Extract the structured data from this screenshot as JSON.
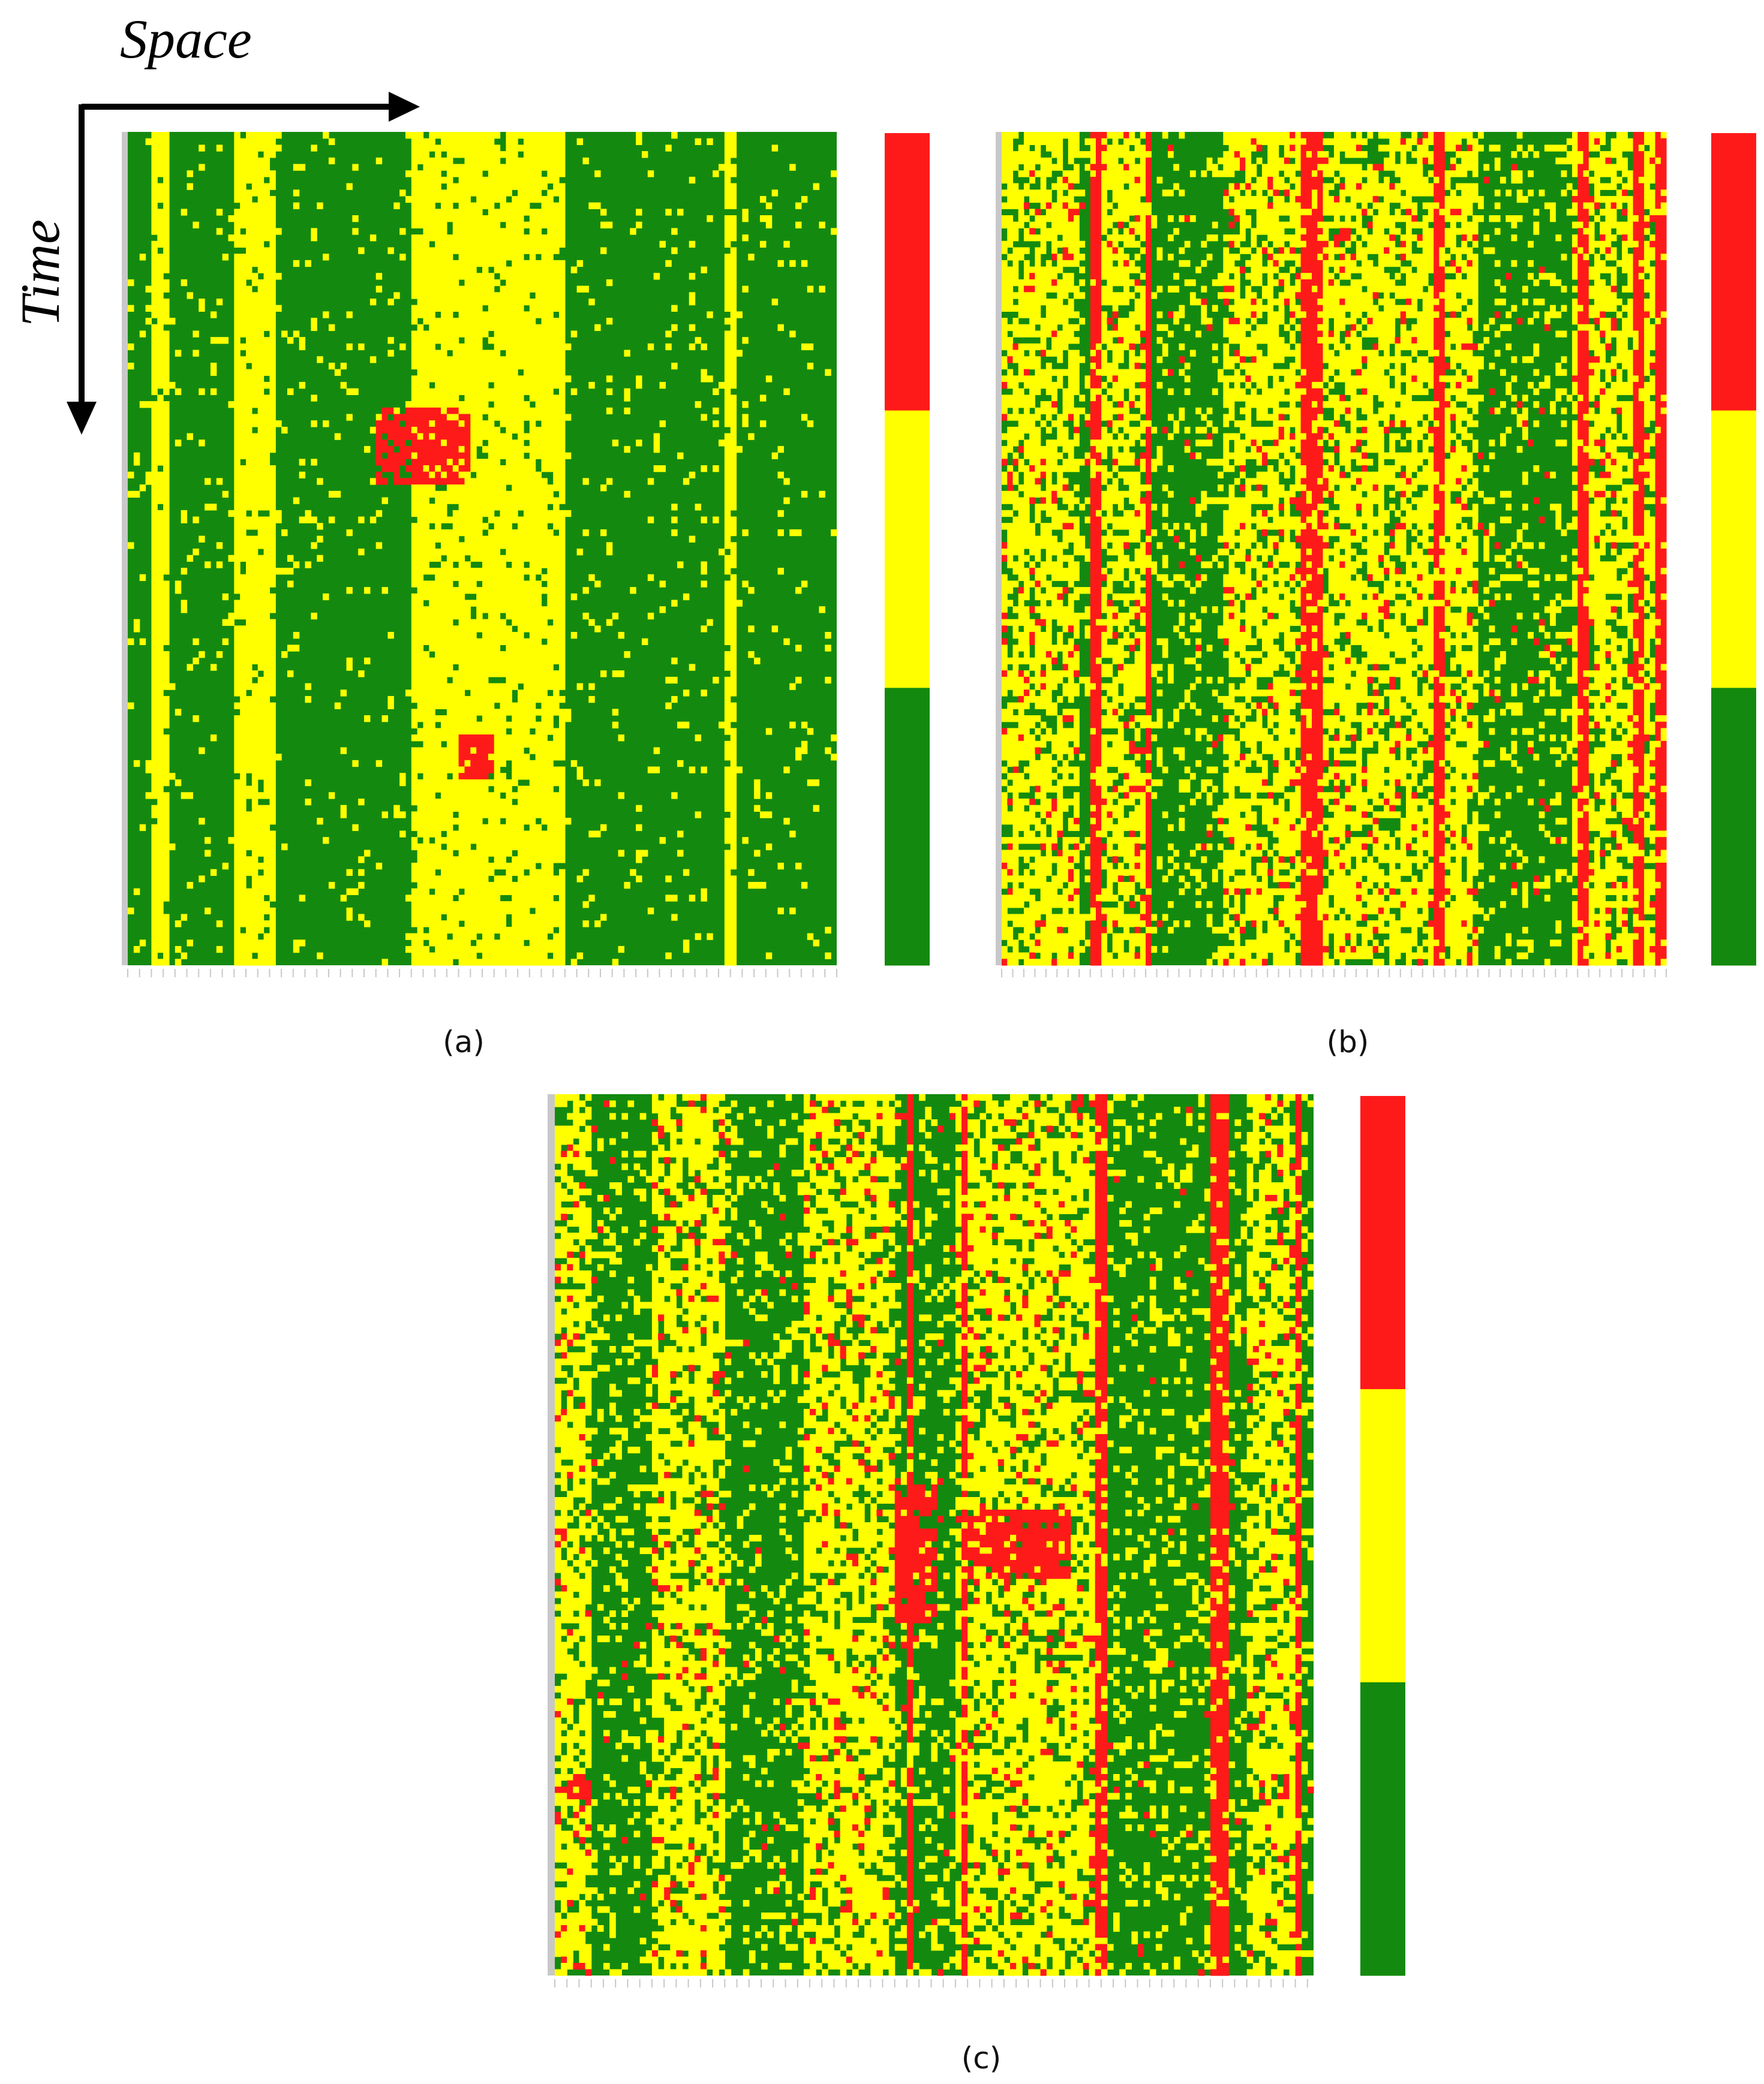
{
  "figure": {
    "space_label": "Space",
    "time_label": "Time"
  },
  "colors": {
    "green": "#138a0f",
    "yellow": "#ffff00",
    "red": "#ff1a1a",
    "background": "#ffffff",
    "axis": "#000000"
  },
  "chart_data": [
    {
      "type": "heatmap",
      "panel_label": "(a)",
      "x_axis": "Space",
      "y_axis": "Time",
      "levels": [
        "green",
        "yellow",
        "red"
      ],
      "colorbar": [
        "red",
        "yellow",
        "green"
      ],
      "dominant_level": "green",
      "yellow_bands": [
        [
          0.03,
          0.06
        ],
        [
          0.15,
          0.21
        ],
        [
          0.4,
          0.62
        ],
        [
          0.84,
          0.86
        ]
      ],
      "red_regions": [
        [
          0.35,
          0.48,
          0.33,
          0.42
        ],
        [
          0.47,
          0.52,
          0.72,
          0.78
        ]
      ]
    },
    {
      "type": "heatmap",
      "panel_label": "(b)",
      "x_axis": "Space",
      "y_axis": "Time",
      "levels": [
        "green",
        "yellow",
        "red"
      ],
      "colorbar": [
        "red",
        "yellow",
        "green"
      ],
      "dominant_level": "mixed",
      "yellow_bands": [
        [
          0.0,
          0.12
        ],
        [
          0.14,
          0.22
        ],
        [
          0.33,
          0.72
        ],
        [
          0.86,
          0.98
        ]
      ],
      "red_columns": [
        0.14,
        0.22,
        0.46,
        0.47,
        0.48,
        0.66,
        0.87,
        0.88,
        0.96,
        0.99
      ]
    },
    {
      "type": "heatmap",
      "panel_label": "(c)",
      "x_axis": "Space",
      "y_axis": "Time",
      "levels": [
        "green",
        "yellow",
        "red"
      ],
      "colorbar": [
        "red",
        "yellow",
        "green"
      ],
      "dominant_level": "mixed",
      "yellow_bands": [
        [
          0.0,
          0.05
        ],
        [
          0.13,
          0.22
        ],
        [
          0.33,
          0.45
        ],
        [
          0.53,
          0.72
        ],
        [
          0.91,
          0.98
        ]
      ],
      "red_columns": [
        0.47,
        0.54,
        0.72,
        0.87,
        0.88,
        0.98
      ],
      "red_regions": [
        [
          0.45,
          0.5,
          0.44,
          0.6
        ],
        [
          0.54,
          0.68,
          0.47,
          0.55
        ],
        [
          0.02,
          0.05,
          0.77,
          0.8
        ]
      ]
    }
  ]
}
